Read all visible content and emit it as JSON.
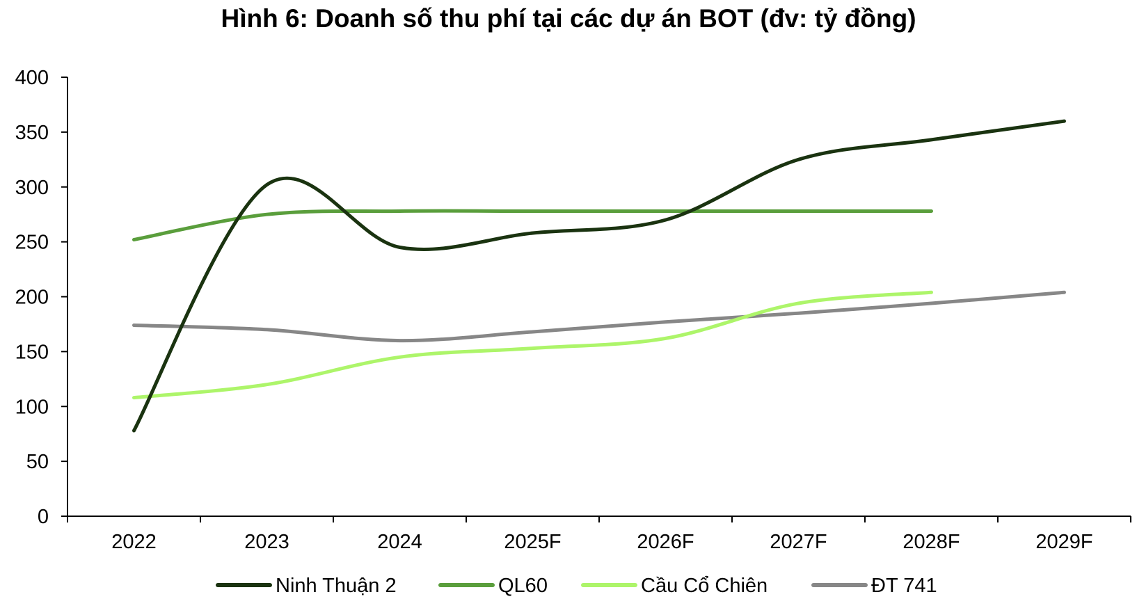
{
  "chart_data": {
    "type": "line",
    "title": "Hình 6: Doanh số thu phí tại các dự án BOT (đv: tỷ đồng)",
    "xlabel": "",
    "ylabel": "",
    "ylim": [
      0,
      400
    ],
    "yticks": [
      0,
      50,
      100,
      150,
      200,
      250,
      300,
      350,
      400
    ],
    "categories": [
      "2022",
      "2023",
      "2024",
      "2025F",
      "2026F",
      "2027F",
      "2028F",
      "2029F"
    ],
    "grid": false,
    "legend_position": "bottom",
    "series": [
      {
        "name": "Ninh Thuận 2",
        "color": "#1a3310",
        "values": [
          78,
          302,
          245,
          258,
          270,
          325,
          343,
          360
        ]
      },
      {
        "name": "QL60",
        "color": "#5a9e3c",
        "values": [
          252,
          275,
          278,
          278,
          278,
          278,
          278,
          null
        ]
      },
      {
        "name": "Cầu Cổ Chiên",
        "color": "#adf56a",
        "values": [
          108,
          120,
          145,
          153,
          162,
          194,
          204,
          null
        ]
      },
      {
        "name": "ĐT 741",
        "color": "#878787",
        "values": [
          174,
          170,
          160,
          168,
          177,
          185,
          194,
          204
        ]
      }
    ]
  }
}
